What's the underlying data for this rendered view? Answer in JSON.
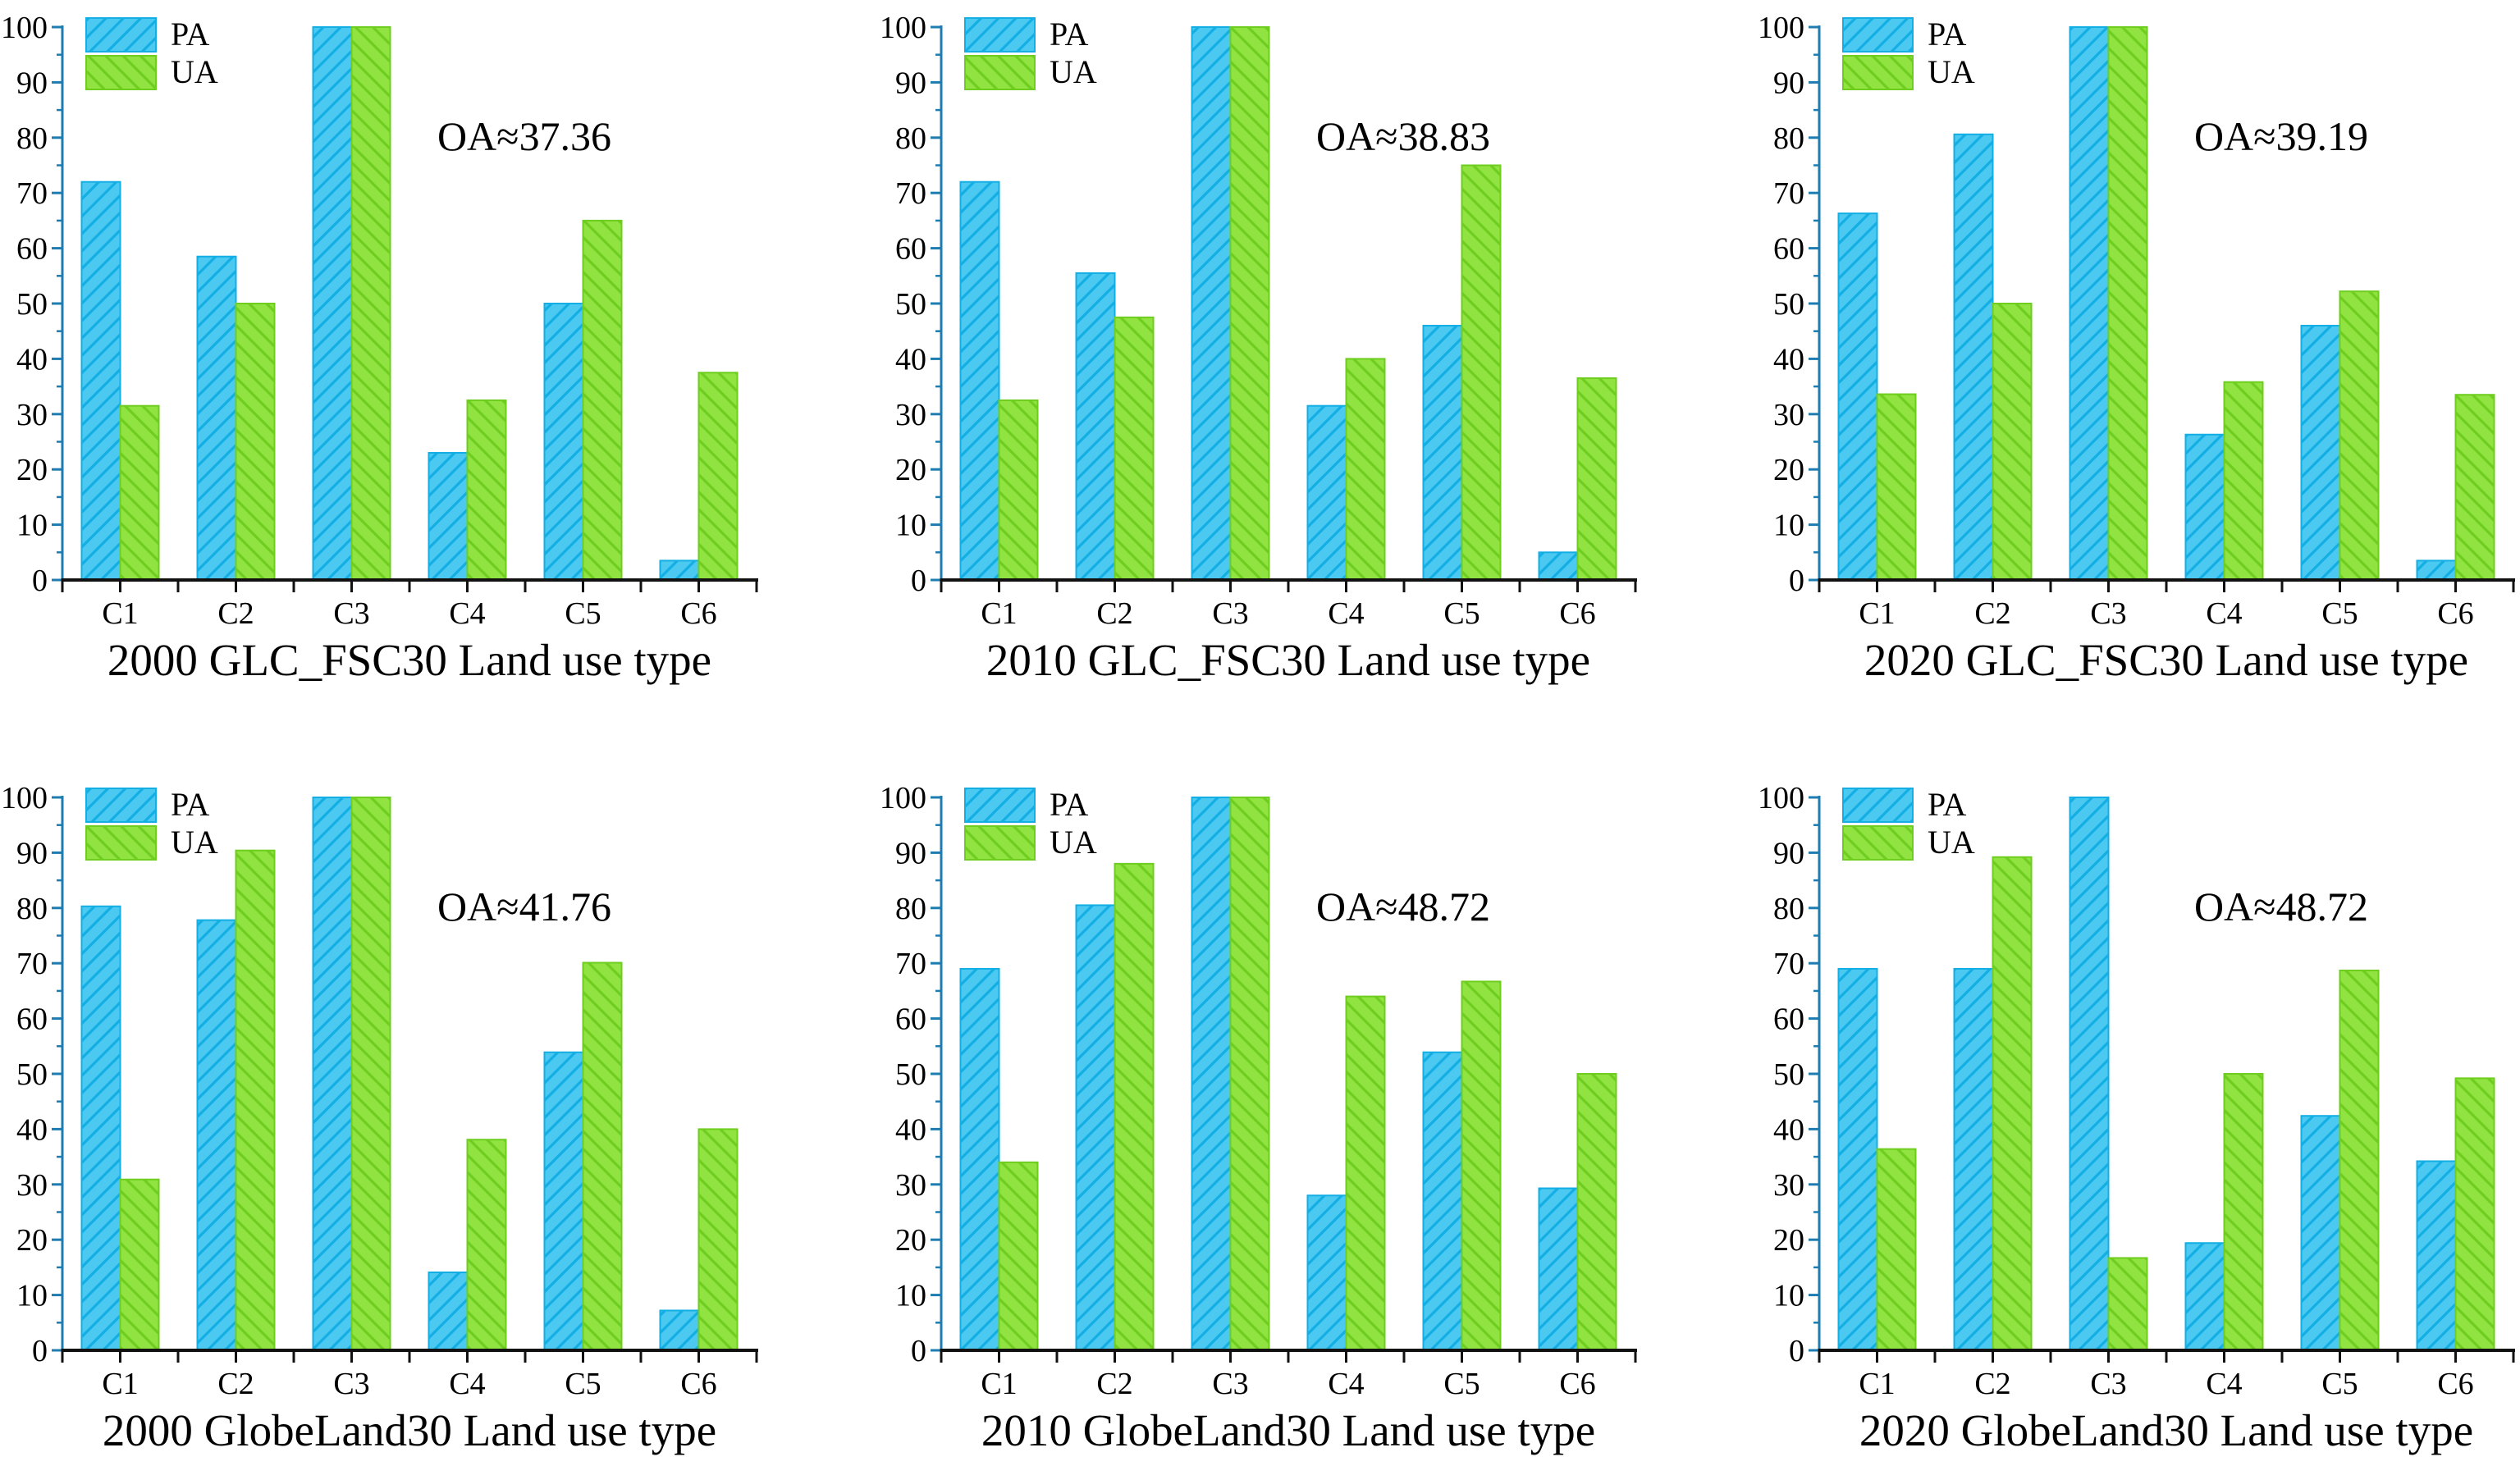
{
  "figure": {
    "background": "#ffffff",
    "rows": 2,
    "cols": 3
  },
  "colors": {
    "pa_fill": "#4bc9f1",
    "pa_hatch": "#12aee4",
    "ua_fill": "#90e341",
    "ua_hatch": "#6ecd1f",
    "y_axis": "#1e7cb0",
    "x_axis": "#111111",
    "text": "#000000"
  },
  "legend_labels": {
    "pa": "PA",
    "ua": "UA"
  },
  "chart_data": [
    {
      "type": "bar",
      "title": "2000 GLC_FSC30 Land use type",
      "annotation": "OA≈37.36",
      "categories": [
        "C1",
        "C2",
        "C3",
        "C4",
        "C5",
        "C6"
      ],
      "series": [
        {
          "name": "PA",
          "values": [
            72,
            58.5,
            100,
            23,
            50,
            3.5
          ]
        },
        {
          "name": "UA",
          "values": [
            31.5,
            50,
            100,
            32.5,
            65,
            37.5
          ]
        }
      ],
      "ylim": [
        0,
        100
      ],
      "ytick_step": 10,
      "ytick_minor_step": 5,
      "grid": false,
      "legend_position": "top-left"
    },
    {
      "type": "bar",
      "title": "2010 GLC_FSC30 Land use type",
      "annotation": "OA≈38.83",
      "categories": [
        "C1",
        "C2",
        "C3",
        "C4",
        "C5",
        "C6"
      ],
      "series": [
        {
          "name": "PA",
          "values": [
            72,
            55.5,
            100,
            31.5,
            46,
            5
          ]
        },
        {
          "name": "UA",
          "values": [
            32.5,
            47.5,
            100,
            40,
            75,
            36.5
          ]
        }
      ],
      "ylim": [
        0,
        100
      ],
      "ytick_step": 10,
      "ytick_minor_step": 5,
      "grid": false,
      "legend_position": "top-left"
    },
    {
      "type": "bar",
      "title": "2020 GLC_FSC30 Land use type",
      "annotation": "OA≈39.19",
      "categories": [
        "C1",
        "C2",
        "C3",
        "C4",
        "C5",
        "C6"
      ],
      "series": [
        {
          "name": "PA",
          "values": [
            66.3,
            80.6,
            100,
            26.3,
            46,
            3.5
          ]
        },
        {
          "name": "UA",
          "values": [
            33.6,
            50,
            100,
            35.8,
            52.2,
            33.5
          ]
        }
      ],
      "ylim": [
        0,
        100
      ],
      "ytick_step": 10,
      "ytick_minor_step": 5,
      "grid": false,
      "legend_position": "top-left"
    },
    {
      "type": "bar",
      "title": "2000 GlobeLand30 Land use type",
      "annotation": "OA≈41.76",
      "categories": [
        "C1",
        "C2",
        "C3",
        "C4",
        "C5",
        "C6"
      ],
      "series": [
        {
          "name": "PA",
          "values": [
            80.3,
            77.8,
            100,
            14.1,
            53.9,
            7.2
          ]
        },
        {
          "name": "UA",
          "values": [
            30.9,
            90.4,
            100,
            38.1,
            70.1,
            40
          ]
        }
      ],
      "ylim": [
        0,
        100
      ],
      "ytick_step": 10,
      "ytick_minor_step": 5,
      "grid": false,
      "legend_position": "top-left"
    },
    {
      "type": "bar",
      "title": "2010 GlobeLand30 Land use type",
      "annotation": "OA≈48.72",
      "categories": [
        "C1",
        "C2",
        "C3",
        "C4",
        "C5",
        "C6"
      ],
      "series": [
        {
          "name": "PA",
          "values": [
            69,
            80.5,
            100,
            28,
            53.9,
            29.3
          ]
        },
        {
          "name": "UA",
          "values": [
            34,
            88,
            100,
            64,
            66.7,
            50
          ]
        }
      ],
      "ylim": [
        0,
        100
      ],
      "ytick_step": 10,
      "ytick_minor_step": 5,
      "grid": false,
      "legend_position": "top-left"
    },
    {
      "type": "bar",
      "title": "2020 GlobeLand30 Land use type",
      "annotation": "OA≈48.72",
      "categories": [
        "C1",
        "C2",
        "C3",
        "C4",
        "C5",
        "C6"
      ],
      "series": [
        {
          "name": "PA",
          "values": [
            69,
            69,
            100,
            19.4,
            42.4,
            34.2
          ]
        },
        {
          "name": "UA",
          "values": [
            36.4,
            89.2,
            16.7,
            50,
            68.7,
            49.2
          ]
        }
      ],
      "ylim": [
        0,
        100
      ],
      "ytick_step": 10,
      "ytick_minor_step": 5,
      "grid": false,
      "legend_position": "top-left"
    }
  ]
}
